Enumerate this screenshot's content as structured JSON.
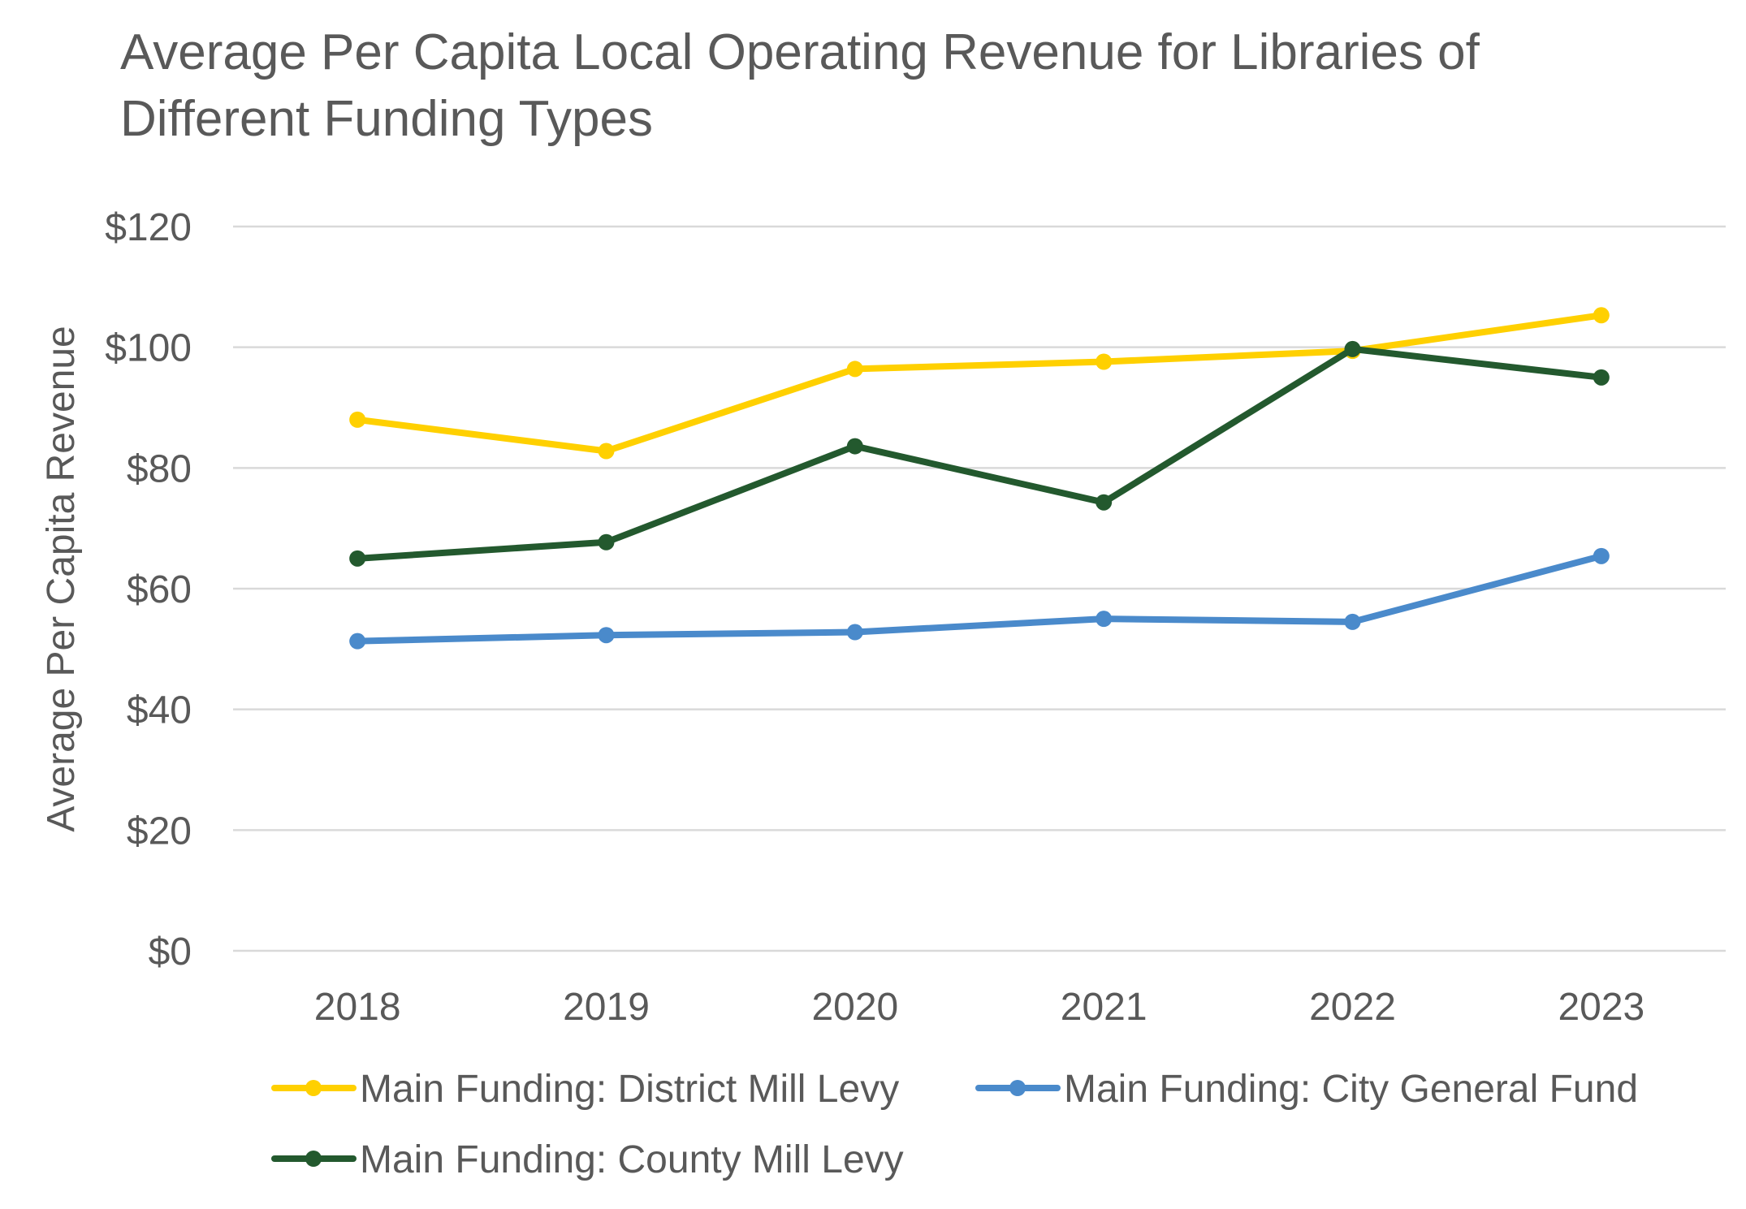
{
  "chart_data": {
    "type": "line",
    "title": "Average Per Capita Local Operating Revenue for Libraries of Different Funding Types",
    "title_lines": [
      "Average Per Capita Local Operating Revenue for Libraries of",
      "Different Funding Types"
    ],
    "xlabel": "",
    "ylabel": "Average Per Capita Revenue",
    "categories": [
      "2018",
      "2019",
      "2020",
      "2021",
      "2022",
      "2023"
    ],
    "ylim": [
      0,
      120
    ],
    "yticks": [
      0,
      20,
      40,
      60,
      80,
      100,
      120
    ],
    "ytick_labels": [
      "$0",
      "$20",
      "$40",
      "$60",
      "$80",
      "$100",
      "$120"
    ],
    "grid": true,
    "legend_position": "bottom",
    "series": [
      {
        "name": "Main Funding: District Mill Levy",
        "color": "#FFD000",
        "values": [
          88.0,
          82.8,
          96.4,
          97.6,
          99.4,
          105.3
        ]
      },
      {
        "name": "Main Funding: City General Fund",
        "color": "#4A8ACB",
        "values": [
          51.3,
          52.3,
          52.8,
          55.0,
          54.5,
          65.4
        ]
      },
      {
        "name": "Main Funding: County Mill Levy",
        "color": "#23592E",
        "values": [
          65.0,
          67.7,
          83.6,
          74.3,
          99.7,
          95.0
        ]
      }
    ]
  }
}
